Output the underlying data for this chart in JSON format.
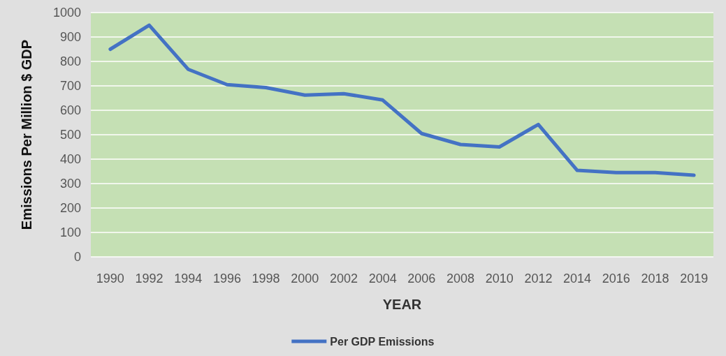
{
  "chart_data": {
    "type": "line",
    "xlabel": "YEAR",
    "ylabel": "Emissions Per Million $ GDP",
    "categories": [
      "1990",
      "1992",
      "1994",
      "1996",
      "1998",
      "2000",
      "2002",
      "2004",
      "2006",
      "2008",
      "2010",
      "2012",
      "2014",
      "2016",
      "2018",
      "2019"
    ],
    "series": [
      {
        "name": "Per GDP Emissions",
        "color": "#4472c4",
        "values": [
          850,
          948,
          768,
          705,
          693,
          662,
          668,
          642,
          505,
          460,
          450,
          542,
          354,
          345,
          345,
          334
        ]
      }
    ],
    "ylim": [
      0,
      1000
    ],
    "yticks": [
      0,
      100,
      200,
      300,
      400,
      500,
      600,
      700,
      800,
      900,
      1000
    ],
    "grid": "y",
    "legend": "bottom",
    "marker": "none",
    "line_style": "solid"
  }
}
